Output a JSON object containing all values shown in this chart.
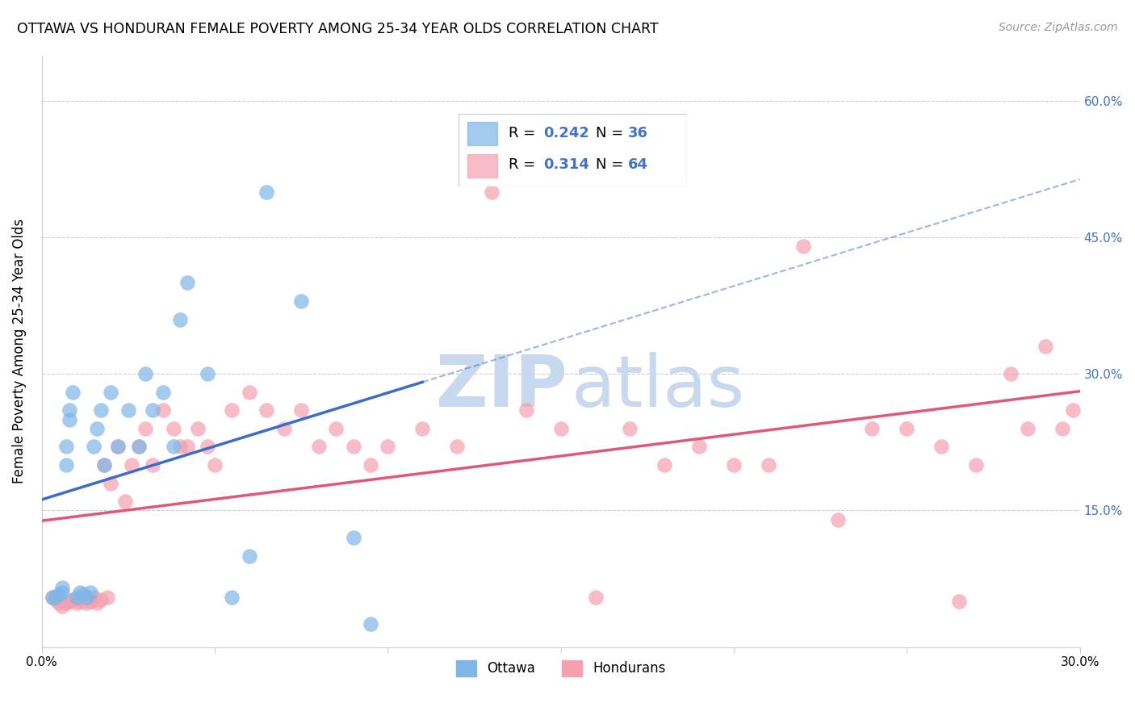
{
  "title": "OTTAWA VS HONDURAN FEMALE POVERTY AMONG 25-34 YEAR OLDS CORRELATION CHART",
  "source": "Source: ZipAtlas.com",
  "ylabel": "Female Poverty Among 25-34 Year Olds",
  "xlim": [
    0.0,
    0.3
  ],
  "ylim": [
    0.0,
    0.65
  ],
  "xticks": [
    0.0,
    0.05,
    0.1,
    0.15,
    0.2,
    0.25,
    0.3
  ],
  "xtick_labels": [
    "0.0%",
    "",
    "",
    "",
    "",
    "",
    "30.0%"
  ],
  "right_ytick_labels": [
    "15.0%",
    "30.0%",
    "45.0%",
    "60.0%"
  ],
  "right_ytick_vals": [
    0.15,
    0.3,
    0.45,
    0.6
  ],
  "ottawa_color": "#7EB6E8",
  "honduran_color": "#F4A0B0",
  "trendline_ottawa_color": "#3A6CC8",
  "trendline_honduran_color": "#E05878",
  "legend_R_color": "#4472C4",
  "ottawa_R": 0.242,
  "ottawa_N": 36,
  "honduran_R": 0.314,
  "honduran_N": 64,
  "ottawa_x": [
    0.003,
    0.004,
    0.005,
    0.006,
    0.006,
    0.007,
    0.007,
    0.008,
    0.008,
    0.009,
    0.01,
    0.011,
    0.012,
    0.013,
    0.014,
    0.015,
    0.016,
    0.017,
    0.018,
    0.02,
    0.022,
    0.025,
    0.028,
    0.03,
    0.032,
    0.035,
    0.038,
    0.04,
    0.042,
    0.048,
    0.055,
    0.06,
    0.065,
    0.075,
    0.09,
    0.095
  ],
  "ottawa_y": [
    0.055,
    0.055,
    0.058,
    0.06,
    0.065,
    0.2,
    0.22,
    0.25,
    0.26,
    0.28,
    0.055,
    0.06,
    0.058,
    0.055,
    0.06,
    0.22,
    0.24,
    0.26,
    0.2,
    0.28,
    0.22,
    0.26,
    0.22,
    0.3,
    0.26,
    0.28,
    0.22,
    0.36,
    0.4,
    0.3,
    0.055,
    0.1,
    0.5,
    0.38,
    0.12,
    0.025
  ],
  "honduran_x": [
    0.003,
    0.004,
    0.005,
    0.006,
    0.007,
    0.008,
    0.009,
    0.01,
    0.011,
    0.012,
    0.013,
    0.014,
    0.015,
    0.016,
    0.017,
    0.018,
    0.019,
    0.02,
    0.022,
    0.024,
    0.026,
    0.028,
    0.03,
    0.032,
    0.035,
    0.038,
    0.04,
    0.042,
    0.045,
    0.048,
    0.05,
    0.055,
    0.06,
    0.065,
    0.07,
    0.075,
    0.08,
    0.085,
    0.09,
    0.095,
    0.1,
    0.11,
    0.12,
    0.13,
    0.14,
    0.15,
    0.16,
    0.17,
    0.18,
    0.19,
    0.2,
    0.21,
    0.22,
    0.23,
    0.24,
    0.25,
    0.26,
    0.265,
    0.27,
    0.28,
    0.285,
    0.29,
    0.295,
    0.298
  ],
  "honduran_y": [
    0.055,
    0.052,
    0.048,
    0.045,
    0.048,
    0.05,
    0.052,
    0.048,
    0.05,
    0.052,
    0.048,
    0.05,
    0.055,
    0.048,
    0.052,
    0.2,
    0.055,
    0.18,
    0.22,
    0.16,
    0.2,
    0.22,
    0.24,
    0.2,
    0.26,
    0.24,
    0.22,
    0.22,
    0.24,
    0.22,
    0.2,
    0.26,
    0.28,
    0.26,
    0.24,
    0.26,
    0.22,
    0.24,
    0.22,
    0.2,
    0.22,
    0.24,
    0.22,
    0.5,
    0.26,
    0.24,
    0.055,
    0.24,
    0.2,
    0.22,
    0.2,
    0.2,
    0.44,
    0.14,
    0.24,
    0.24,
    0.22,
    0.05,
    0.2,
    0.3,
    0.24,
    0.33,
    0.24,
    0.26
  ]
}
